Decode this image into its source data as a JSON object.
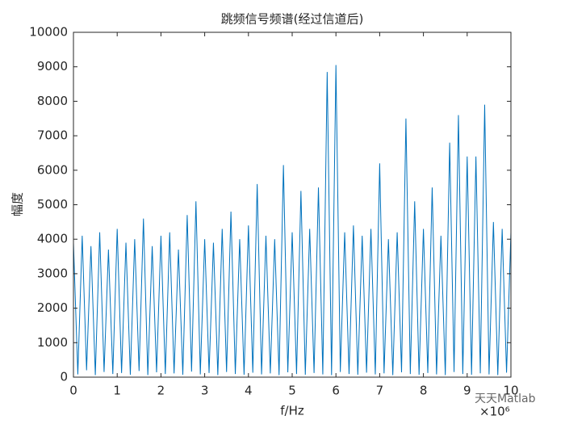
{
  "chart_data": {
    "type": "line",
    "title": "跳频信号频谱(经过信道后)",
    "x_label": "f/Hz",
    "y_label": "幅度",
    "x_exponent": "×10⁶",
    "watermark": "天天Matlab",
    "xlim": [
      0,
      10
    ],
    "xticks": [
      0,
      1,
      2,
      3,
      4,
      5,
      6,
      7,
      8,
      9,
      10
    ],
    "ylim": [
      0,
      10000
    ],
    "yticks": [
      0,
      1000,
      2000,
      3000,
      4000,
      5000,
      6000,
      7000,
      8000,
      9000,
      10000
    ],
    "series": [
      {
        "color": "#0072bd",
        "x": [
          0,
          0.1,
          0.2,
          0.3,
          0.4,
          0.5,
          0.6,
          0.7,
          0.8,
          0.9,
          1,
          1.1,
          1.2,
          1.3,
          1.4,
          1.5,
          1.6,
          1.7,
          1.8,
          1.9,
          2,
          2.1,
          2.2,
          2.3,
          2.4,
          2.5,
          2.6,
          2.7,
          2.8,
          2.9,
          3,
          3.1,
          3.2,
          3.3,
          3.4,
          3.5,
          3.6,
          3.7,
          3.8,
          3.9,
          4,
          4.1,
          4.2,
          4.3,
          4.4,
          4.5,
          4.6,
          4.7,
          4.8,
          4.9,
          5,
          5.1,
          5.2,
          5.3,
          5.4,
          5.5,
          5.6,
          5.7,
          5.8,
          5.9,
          6,
          6.1,
          6.2,
          6.3,
          6.4,
          6.5,
          6.6,
          6.7,
          6.8,
          6.9,
          7,
          7.1,
          7.2,
          7.3,
          7.4,
          7.5,
          7.6,
          7.7,
          7.8,
          7.9,
          8,
          8.1,
          8.2,
          8.3,
          8.4,
          8.5,
          8.6,
          8.7,
          8.8,
          8.9,
          9,
          9.1,
          9.2,
          9.3,
          9.4,
          9.5,
          9.6,
          9.7,
          9.8,
          9.9,
          10
        ],
        "values": [
          3900,
          80,
          4100,
          200,
          3800,
          60,
          4200,
          150,
          3700,
          90,
          4300,
          120,
          3900,
          70,
          4000,
          180,
          4600,
          60,
          3800,
          140,
          4100,
          90,
          4200,
          110,
          3700,
          70,
          4700,
          160,
          5100,
          80,
          4000,
          120,
          3900,
          60,
          4300,
          150,
          4800,
          90,
          4000,
          70,
          4400,
          130,
          5600,
          80,
          4100,
          110,
          4000,
          60,
          6150,
          140,
          4200,
          90,
          5400,
          70,
          4300,
          120,
          5500,
          80,
          8850,
          60,
          9050,
          150,
          4200,
          90,
          4400,
          70,
          4100,
          130,
          4300,
          80,
          6200,
          110,
          4000,
          60,
          4200,
          140,
          7500,
          90,
          5100,
          70,
          4300,
          120,
          5500,
          80,
          4100,
          60,
          6800,
          150,
          7600,
          90,
          6400,
          70,
          6400,
          110,
          7900,
          80,
          4500,
          60,
          4300,
          130,
          4200
        ]
      }
    ]
  }
}
